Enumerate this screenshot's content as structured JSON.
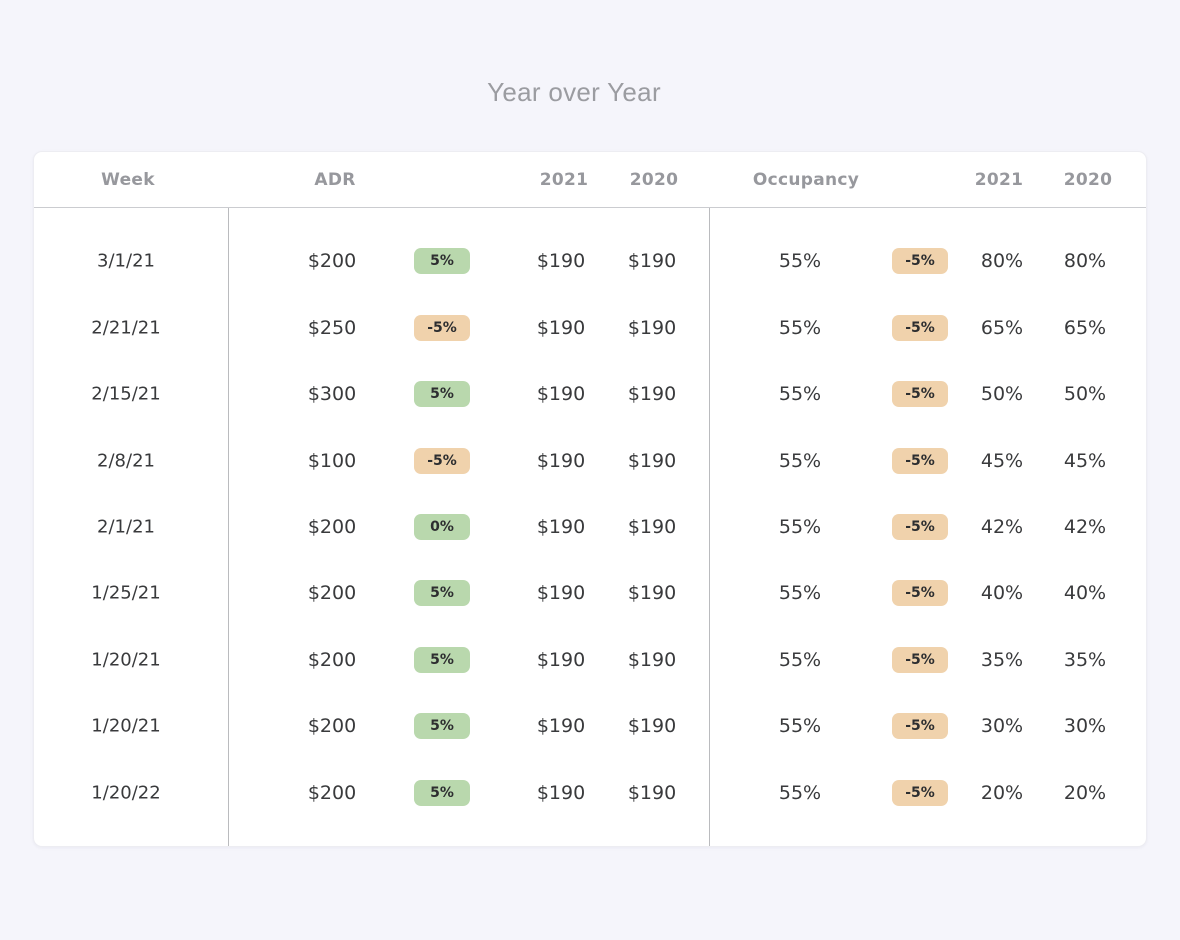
{
  "title": "Year over Year",
  "colors": {
    "page_bg": "#f5f5fb",
    "card_bg": "#ffffff",
    "card_border": "#ededf2",
    "title_text": "#9b9ca1",
    "header_text": "#97989d",
    "header_border": "#cbccd0",
    "divider": "#babbbe",
    "body_text": "#393a3c",
    "badge_green_bg": "#b9d8ad",
    "badge_orange_bg": "#f0d2ac",
    "badge_text": "#2d2e30"
  },
  "table": {
    "headers": [
      "Week",
      "ADR",
      "2021",
      "2020",
      "Occupancy",
      "2021",
      "2020"
    ],
    "rows": [
      {
        "week": "3/1/21",
        "adr": "$200",
        "adr_change": {
          "label": "5%",
          "variant": "green"
        },
        "adr_2021": "$190",
        "adr_2020": "$190",
        "occupancy": "55%",
        "occupancy_change": {
          "label": "-5%",
          "variant": "orange"
        },
        "occupancy_2021": "80%",
        "occupancy_2020": "80%"
      },
      {
        "week": "2/21/21",
        "adr": "$250",
        "adr_change": {
          "label": "-5%",
          "variant": "orange"
        },
        "adr_2021": "$190",
        "adr_2020": "$190",
        "occupancy": "55%",
        "occupancy_change": {
          "label": "-5%",
          "variant": "orange"
        },
        "occupancy_2021": "65%",
        "occupancy_2020": "65%"
      },
      {
        "week": "2/15/21",
        "adr": "$300",
        "adr_change": {
          "label": "5%",
          "variant": "green"
        },
        "adr_2021": "$190",
        "adr_2020": "$190",
        "occupancy": "55%",
        "occupancy_change": {
          "label": "-5%",
          "variant": "orange"
        },
        "occupancy_2021": "50%",
        "occupancy_2020": "50%"
      },
      {
        "week": "2/8/21",
        "adr": "$100",
        "adr_change": {
          "label": "-5%",
          "variant": "orange"
        },
        "adr_2021": "$190",
        "adr_2020": "$190",
        "occupancy": "55%",
        "occupancy_change": {
          "label": "-5%",
          "variant": "orange"
        },
        "occupancy_2021": "45%",
        "occupancy_2020": "45%"
      },
      {
        "week": "2/1/21",
        "adr": "$200",
        "adr_change": {
          "label": "0%",
          "variant": "green"
        },
        "adr_2021": "$190",
        "adr_2020": "$190",
        "occupancy": "55%",
        "occupancy_change": {
          "label": "-5%",
          "variant": "orange"
        },
        "occupancy_2021": "42%",
        "occupancy_2020": "42%"
      },
      {
        "week": "1/25/21",
        "adr": "$200",
        "adr_change": {
          "label": "5%",
          "variant": "green"
        },
        "adr_2021": "$190",
        "adr_2020": "$190",
        "occupancy": "55%",
        "occupancy_change": {
          "label": "-5%",
          "variant": "orange"
        },
        "occupancy_2021": "40%",
        "occupancy_2020": "40%"
      },
      {
        "week": "1/20/21",
        "adr": "$200",
        "adr_change": {
          "label": "5%",
          "variant": "green"
        },
        "adr_2021": "$190",
        "adr_2020": "$190",
        "occupancy": "55%",
        "occupancy_change": {
          "label": "-5%",
          "variant": "orange"
        },
        "occupancy_2021": "35%",
        "occupancy_2020": "35%"
      },
      {
        "week": "1/20/21",
        "adr": "$200",
        "adr_change": {
          "label": "5%",
          "variant": "green"
        },
        "adr_2021": "$190",
        "adr_2020": "$190",
        "occupancy": "55%",
        "occupancy_change": {
          "label": "-5%",
          "variant": "orange"
        },
        "occupancy_2021": "30%",
        "occupancy_2020": "30%"
      },
      {
        "week": "1/20/22",
        "adr": "$200",
        "adr_change": {
          "label": "5%",
          "variant": "green"
        },
        "adr_2021": "$190",
        "adr_2020": "$190",
        "occupancy": "55%",
        "occupancy_change": {
          "label": "-5%",
          "variant": "orange"
        },
        "occupancy_2021": "20%",
        "occupancy_2020": "20%"
      }
    ]
  }
}
